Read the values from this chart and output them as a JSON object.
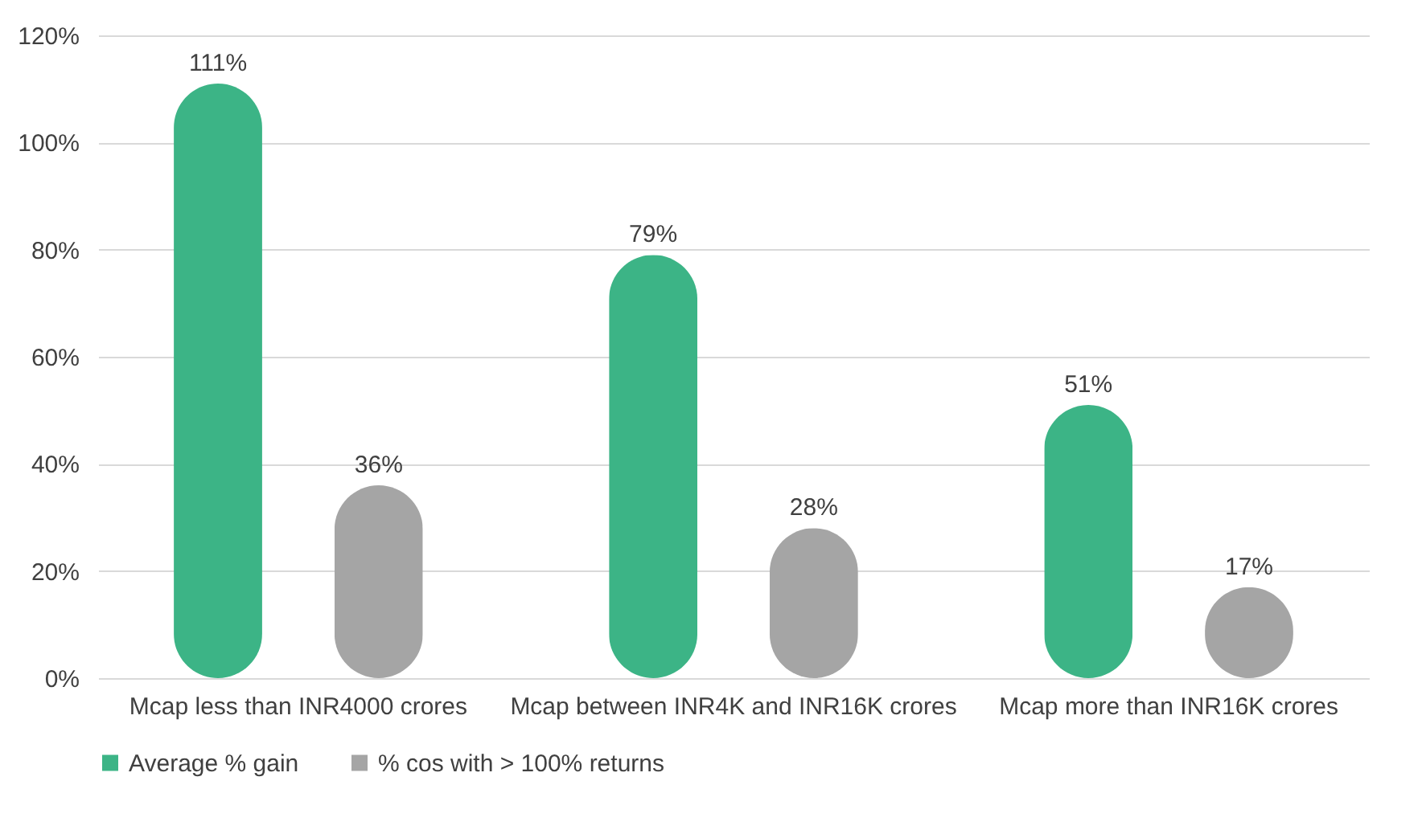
{
  "chart_data": {
    "type": "bar",
    "categories": [
      "Mcap less than INR4000 crores",
      "Mcap between INR4K and INR16K crores",
      "Mcap more than INR16K crores"
    ],
    "series": [
      {
        "name": "Average % gain",
        "color": "#3cb486",
        "values": [
          111,
          79,
          51
        ],
        "value_labels": [
          "111%",
          "79%",
          "51%"
        ]
      },
      {
        "name": "% cos with > 100% returns",
        "color": "#a5a5a5",
        "values": [
          36,
          28,
          17
        ],
        "value_labels": [
          "36%",
          "28%",
          "17%"
        ]
      }
    ],
    "ylim": [
      0,
      120
    ],
    "yticks": [
      {
        "value": 0,
        "label": "0%"
      },
      {
        "value": 20,
        "label": "20%"
      },
      {
        "value": 40,
        "label": "40%"
      },
      {
        "value": 60,
        "label": "60%"
      },
      {
        "value": 80,
        "label": "80%"
      },
      {
        "value": 100,
        "label": "100%"
      },
      {
        "value": 120,
        "label": "120%"
      }
    ],
    "grid": "y",
    "legend": "bottom"
  }
}
